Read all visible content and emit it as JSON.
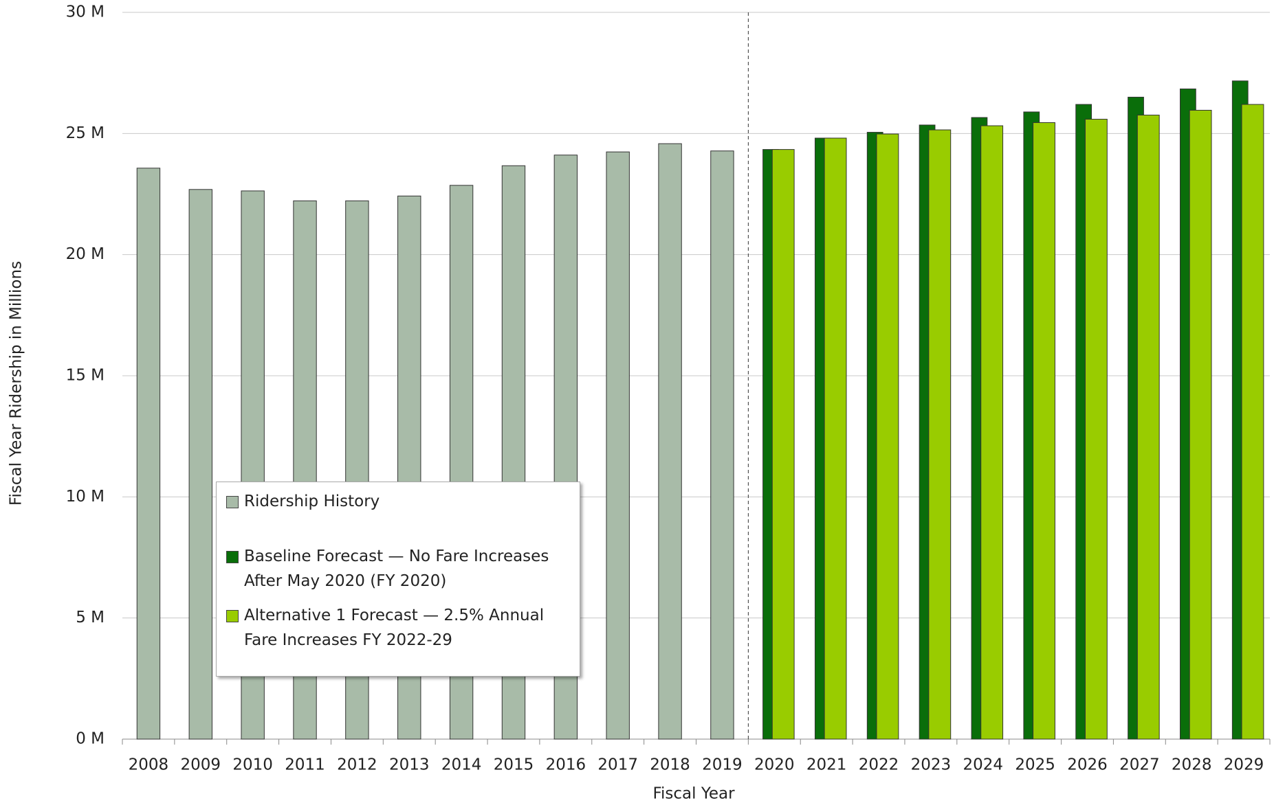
{
  "chart_data": {
    "type": "bar",
    "x_label": "Fiscal Year",
    "y_label": "Fiscal Year Ridership  in Millions",
    "categories": [
      "2008",
      "2009",
      "2010",
      "2011",
      "2012",
      "2013",
      "2014",
      "2015",
      "2016",
      "2017",
      "2018",
      "2019",
      "2020",
      "2021",
      "2022",
      "2023",
      "2024",
      "2025",
      "2026",
      "2027",
      "2028",
      "2029"
    ],
    "series": [
      {
        "name": "Ridership History",
        "color": "#a8bba8",
        "values": [
          23.57,
          22.69,
          22.63,
          22.22,
          22.22,
          22.42,
          22.86,
          23.67,
          24.11,
          24.24,
          24.58,
          24.28,
          null,
          null,
          null,
          null,
          null,
          null,
          null,
          null,
          null,
          null
        ]
      },
      {
        "name": "Baseline Forecast — No Fare Increases After May 2020 (FY 2020)",
        "color": "#0a6e0a",
        "values": [
          null,
          null,
          null,
          null,
          null,
          null,
          null,
          null,
          null,
          null,
          null,
          null,
          24.34,
          24.81,
          25.05,
          25.35,
          25.66,
          25.89,
          26.2,
          26.5,
          26.84,
          27.17
        ]
      },
      {
        "name": "Alternative 1 Forecast — 2.5% Annual Fare Increases FY 2022-29",
        "color": "#99cc00",
        "values": [
          null,
          null,
          null,
          null,
          null,
          null,
          null,
          null,
          null,
          null,
          null,
          null,
          24.34,
          24.81,
          24.98,
          25.15,
          25.32,
          25.45,
          25.59,
          25.76,
          25.96,
          26.2
        ]
      }
    ],
    "ylim": [
      0,
      30
    ],
    "yticks": [
      {
        "value": 0,
        "label": "0 M"
      },
      {
        "value": 5,
        "label": "5 M"
      },
      {
        "value": 10,
        "label": "10 M"
      },
      {
        "value": 15,
        "label": "15 M"
      },
      {
        "value": 20,
        "label": "20 M"
      },
      {
        "value": 25,
        "label": "25 M"
      },
      {
        "value": 30,
        "label": "30 M"
      }
    ],
    "grid": true
  }
}
